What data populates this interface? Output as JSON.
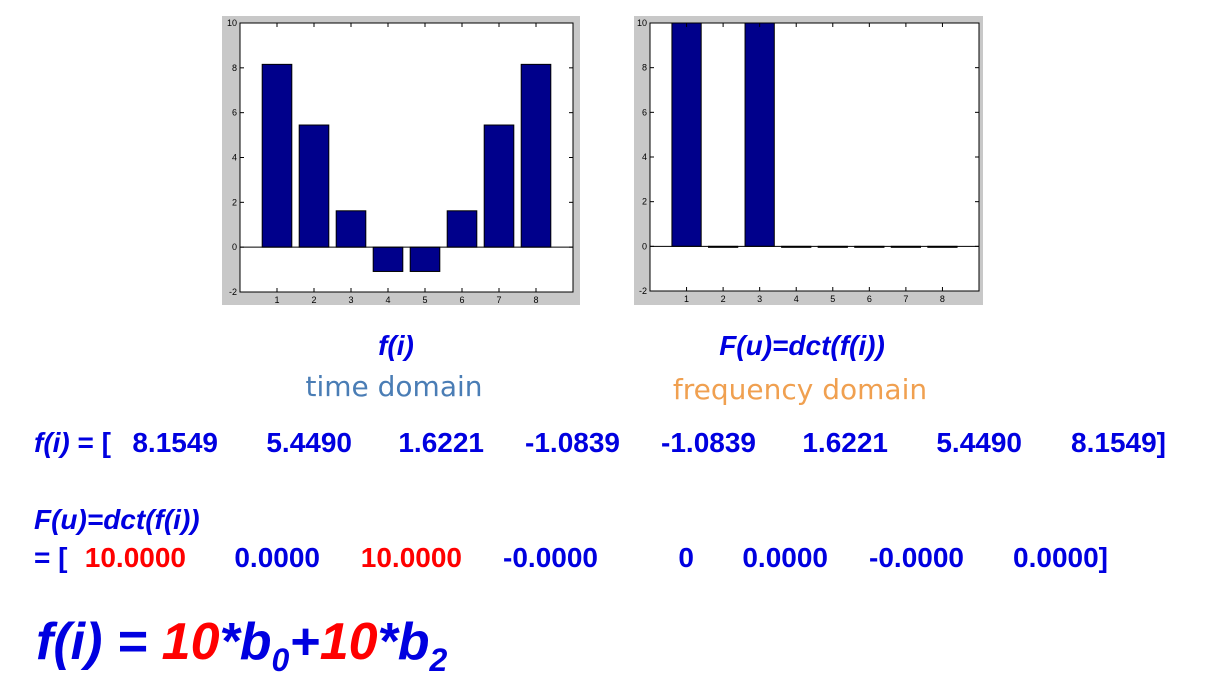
{
  "chart_data": [
    {
      "type": "bar",
      "categories": [
        "1",
        "2",
        "3",
        "4",
        "5",
        "6",
        "7",
        "8"
      ],
      "values": [
        8.1549,
        5.449,
        1.6221,
        -1.0839,
        -1.0839,
        1.6221,
        5.449,
        8.1549
      ],
      "ylim": [
        -2,
        10
      ],
      "yticks": [
        "-2",
        "0",
        "2",
        "4",
        "6",
        "8",
        "10"
      ],
      "xlim": [
        0,
        9
      ],
      "bar_color": "#00008b",
      "grid": false
    },
    {
      "type": "bar",
      "categories": [
        "1",
        "2",
        "3",
        "4",
        "5",
        "6",
        "7",
        "8"
      ],
      "values": [
        10.0,
        0.0,
        10.0,
        -0.0,
        0,
        0.0,
        -0.0,
        0.0
      ],
      "ylim": [
        -2,
        10
      ],
      "yticks": [
        "-2",
        "0",
        "2",
        "4",
        "6",
        "8",
        "10"
      ],
      "xlim": [
        0,
        9
      ],
      "bar_color": "#00008b",
      "grid": false
    }
  ],
  "captions": {
    "left_eq": "f(i)",
    "left_domain": "time domain",
    "right_eq": "F(u)=dct(f(i))",
    "right_domain": "frequency domain"
  },
  "colors": {
    "blue_text": "#0000e0",
    "red_text": "#ff0000",
    "time_domain": "#4a7db5",
    "frequency_domain": "#f0a050"
  },
  "fi_line": {
    "label": "f(i)",
    "eq": " = [",
    "values": [
      "8.1549",
      "5.4490",
      "1.6221",
      "-1.0839",
      "-1.0839",
      "1.6221",
      "5.4490",
      "8.1549]"
    ]
  },
  "Fu_line": {
    "label": "F(u)=dct(f(i))",
    "prefix": "= [",
    "values": [
      "10.0000",
      "0.0000",
      "10.0000",
      "-0.0000",
      "0",
      "0.0000",
      "-0.0000",
      "0.0000]"
    ]
  },
  "formula": {
    "lhs": "f(i) = ",
    "c0": "10",
    "t0": "*b",
    "s0": "0",
    "plus": "+",
    "c2": "10",
    "t2": "*b",
    "s2": "2"
  }
}
